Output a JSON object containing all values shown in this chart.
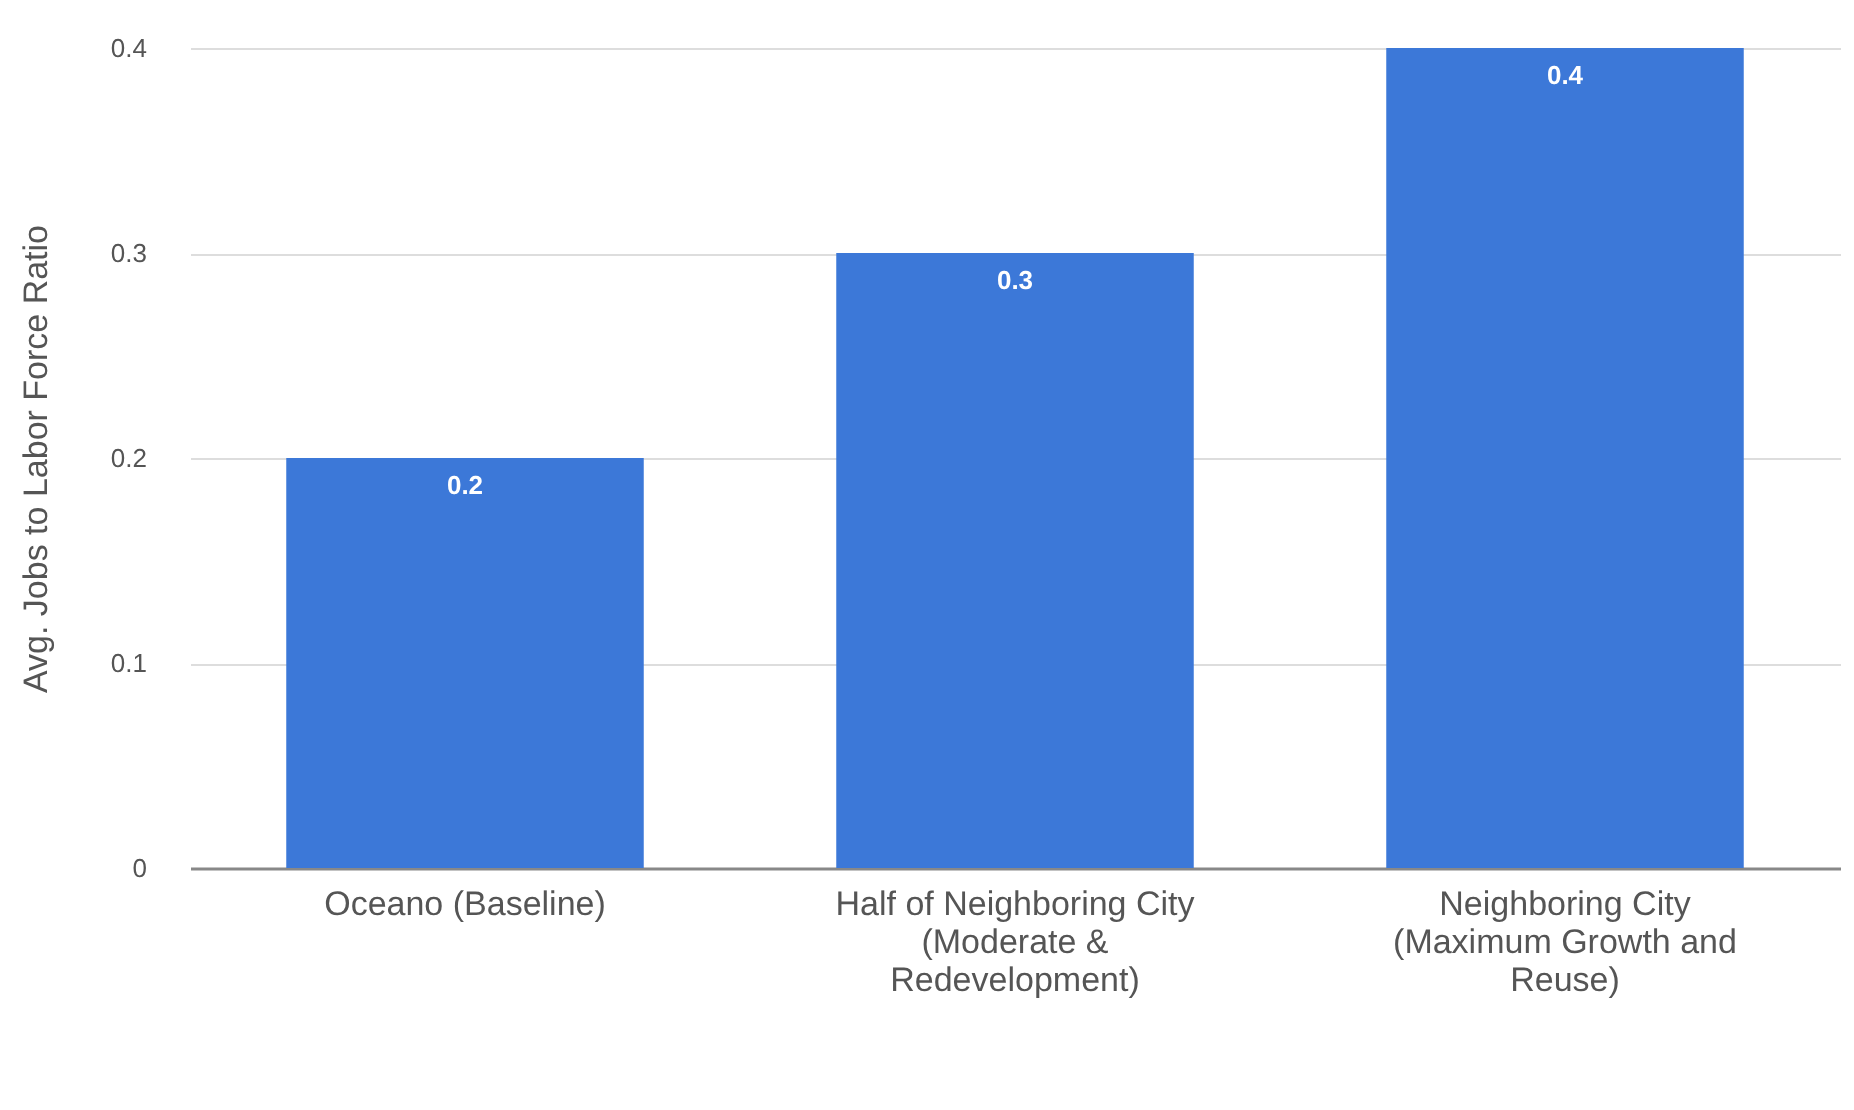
{
  "chart_data": {
    "type": "bar",
    "ylabel": "Avg. Jobs to Labor Force Ratio",
    "categories": [
      "Oceano   (Baseline)",
      "Half of Neighboring City (Moderate & Redevelopment)",
      "Neighboring City (Maximum Growth and Reuse)"
    ],
    "values": [
      0.2,
      0.3,
      0.4
    ],
    "color": "#3c78d8",
    "ylim": [
      0,
      0.4
    ],
    "yticks": [
      0,
      0.1,
      0.2,
      0.3,
      0.4
    ],
    "grid": "y",
    "data_labels": true
  }
}
